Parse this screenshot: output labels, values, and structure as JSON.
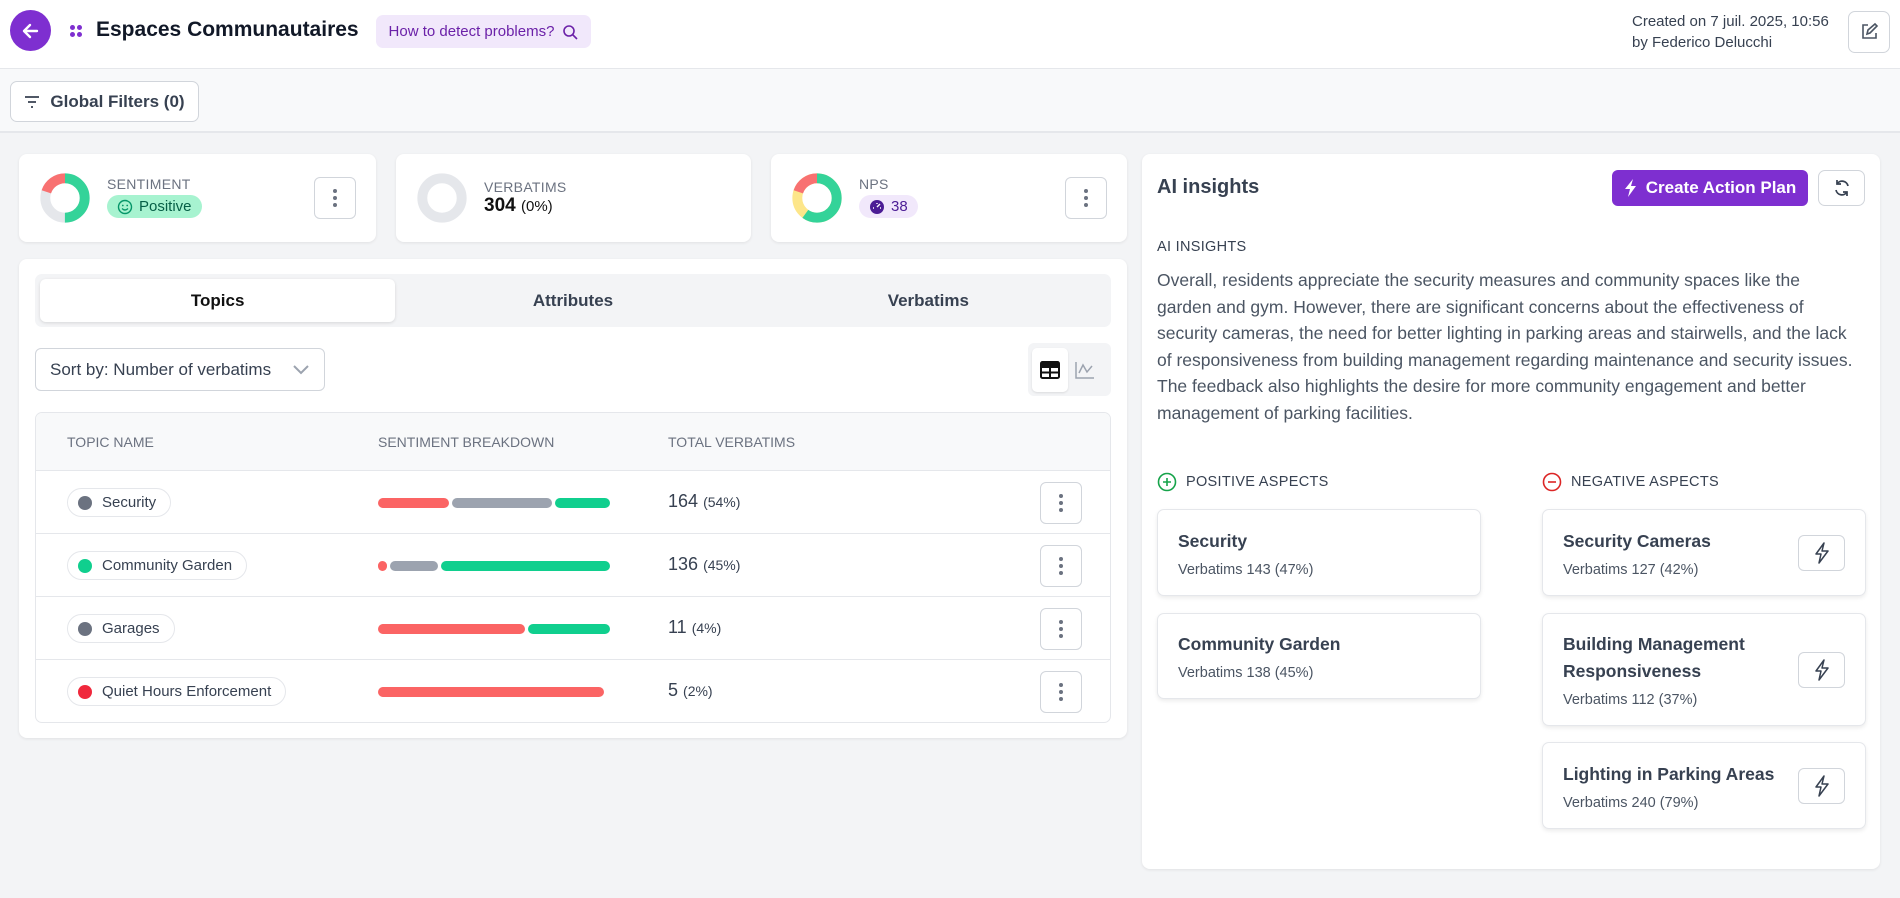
{
  "header": {
    "title": "Espaces Communautaires",
    "help_label": "How to detect problems?",
    "created_line1": "Created on 7 juil. 2025, 10:56",
    "created_line2": "by Federico Delucchi"
  },
  "filters": {
    "global_label": "Global Filters (0)"
  },
  "kpis": {
    "sentiment": {
      "label": "SENTIMENT",
      "value": "Positive",
      "donut": {
        "positive": 0.5,
        "neutral": 0.3,
        "negative": 0.2
      }
    },
    "verbatims": {
      "label": "VERBATIMS",
      "value": "304",
      "pct": "(0%)"
    },
    "nps": {
      "label": "NPS",
      "value": "38",
      "donut": {
        "promoters": 0.6,
        "passives": 0.2,
        "detractors": 0.2
      }
    }
  },
  "tabs": [
    "Topics",
    "Attributes",
    "Verbatims"
  ],
  "active_tab": "Topics",
  "sort": {
    "label": "Sort by: Number of verbatims"
  },
  "table": {
    "headers": [
      "TOPIC NAME",
      "SENTIMENT BREAKDOWN",
      "TOTAL VERBATIMS"
    ],
    "rows": [
      {
        "name": "Security",
        "dot": "#6b7280",
        "count": "164",
        "pct": "(54%)",
        "breakdown": {
          "negative": 31,
          "neutral": 43,
          "positive": 24
        }
      },
      {
        "name": "Community Garden",
        "dot": "#10cf8e",
        "count": "136",
        "pct": "(45%)",
        "breakdown": {
          "negative": 4,
          "neutral": 21,
          "positive": 75
        }
      },
      {
        "name": "Garages",
        "dot": "#6b7280",
        "count": "11",
        "pct": "(4%)",
        "breakdown": {
          "negative": 64,
          "neutral": 0,
          "positive": 36
        }
      },
      {
        "name": "Quiet Hours Enforcement",
        "dot": "#f0283c",
        "count": "5",
        "pct": "(2%)",
        "breakdown": {
          "negative": 100,
          "neutral": 0,
          "positive": 0
        }
      }
    ]
  },
  "ai": {
    "title": "AI insights",
    "create_label": "Create Action Plan",
    "section_label": "AI INSIGHTS",
    "text": "Overall, residents appreciate the security measures and community spaces like the garden and gym. However, there are significant concerns about the effectiveness of security cameras, the need for better lighting in parking areas and stairwells, and the lack of responsiveness from building management regarding maintenance and security issues. The feedback also highlights the desire for more community engagement and better management of parking facilities.",
    "positive_label": "POSITIVE ASPECTS",
    "negative_label": "NEGATIVE ASPECTS",
    "positive": [
      {
        "title": "Security",
        "sub": "Verbatims 143 (47%)"
      },
      {
        "title": "Community Garden",
        "sub": "Verbatims 138 (45%)"
      }
    ],
    "negative": [
      {
        "title": "Security Cameras",
        "sub": "Verbatims 127 (42%)"
      },
      {
        "title": "Building Management Responsiveness",
        "sub": "Verbatims 112 (37%)"
      },
      {
        "title": "Lighting in Parking Areas",
        "sub": "Verbatims 240 (79%)"
      }
    ]
  },
  "colors": {
    "accent": "#7e2fd0",
    "positive": "#10cf8e",
    "neutral": "#9ca3af",
    "negative": "#fb6464"
  }
}
